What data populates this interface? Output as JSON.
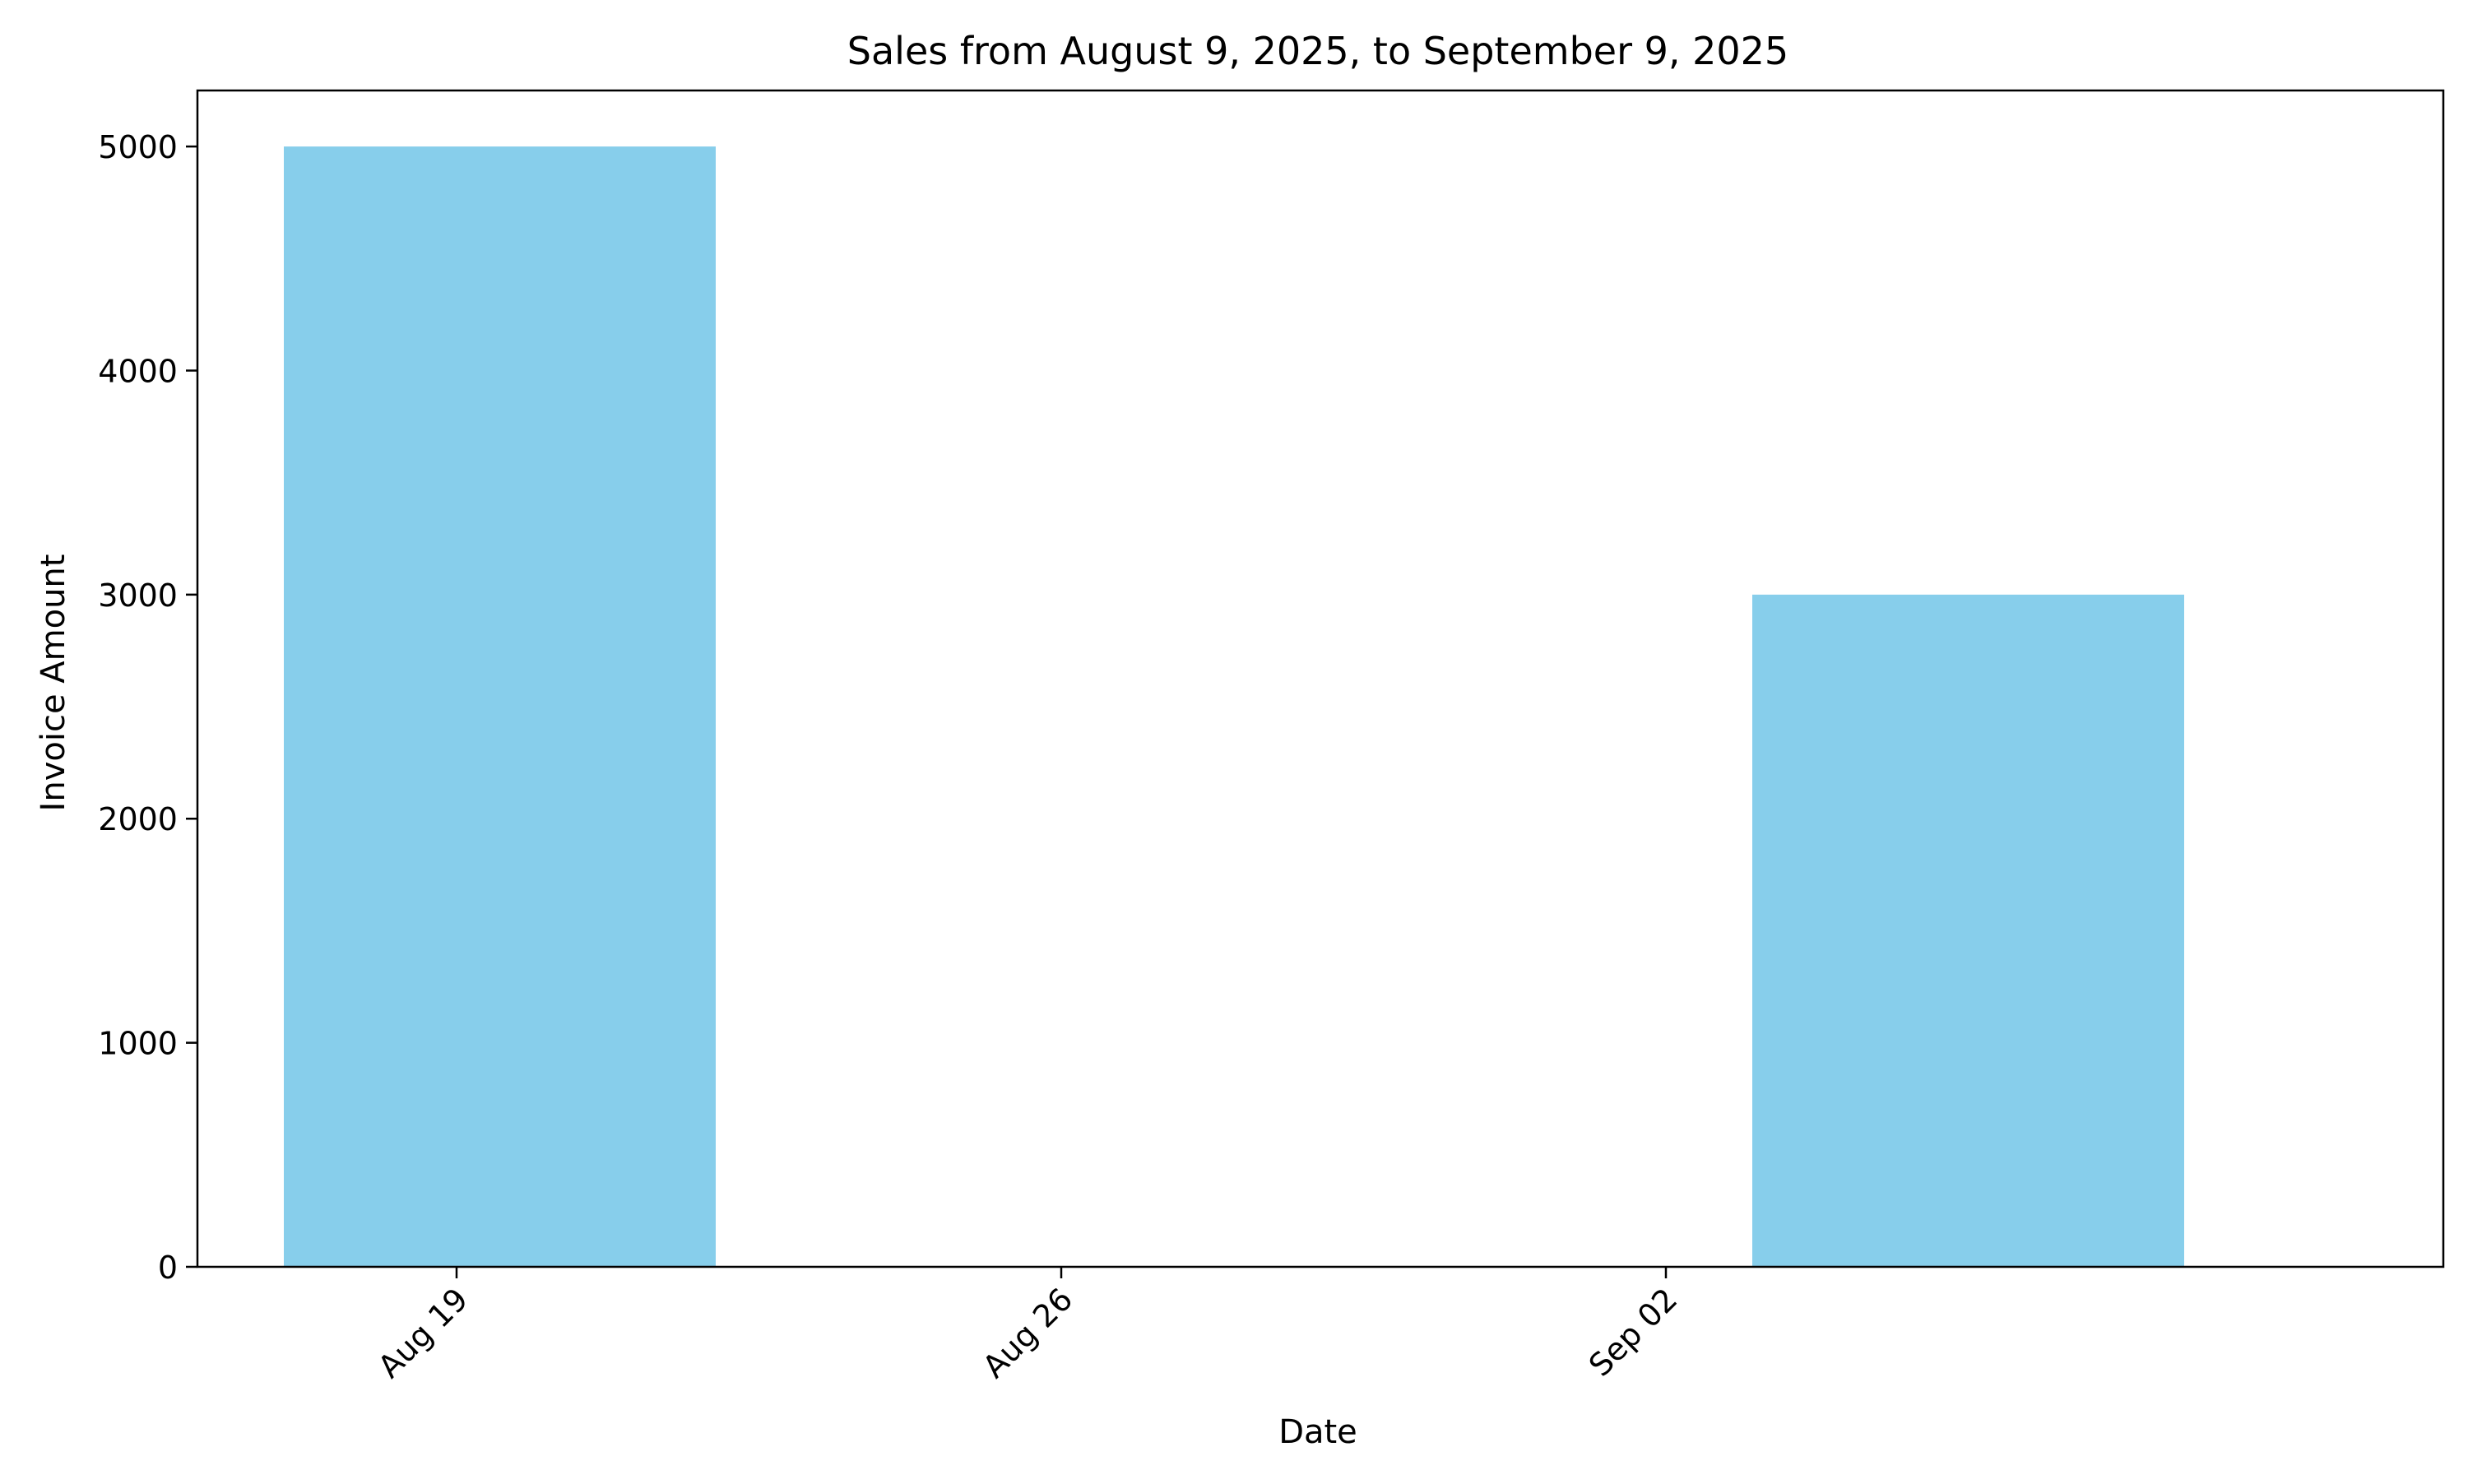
{
  "chart_data": {
    "type": "bar",
    "title": "Sales from August 9, 2025, to September 9, 2025",
    "xlabel": "Date",
    "ylabel": "Invoice Amount",
    "bars": [
      {
        "start": "2025-08-17",
        "end": "2025-08-22",
        "value": 5000
      },
      {
        "start": "2025-09-03",
        "end": "2025-09-08",
        "value": 3000
      }
    ],
    "xlim": [
      "2025-08-16",
      "2025-09-11"
    ],
    "x_ticks": [
      {
        "date": "2025-08-19",
        "label": "Aug 19"
      },
      {
        "date": "2025-08-26",
        "label": "Aug 26"
      },
      {
        "date": "2025-09-02",
        "label": "Sep 02"
      }
    ],
    "ylim": [
      0,
      5250
    ],
    "y_ticks": [
      {
        "value": 0,
        "label": "0"
      },
      {
        "value": 1000,
        "label": "1000"
      },
      {
        "value": 2000,
        "label": "2000"
      },
      {
        "value": 3000,
        "label": "3000"
      },
      {
        "value": 4000,
        "label": "4000"
      },
      {
        "value": 5000,
        "label": "5000"
      }
    ],
    "grid": false,
    "legend": "none",
    "bar_color": "#87CEEB",
    "axis_color": "#000000"
  }
}
